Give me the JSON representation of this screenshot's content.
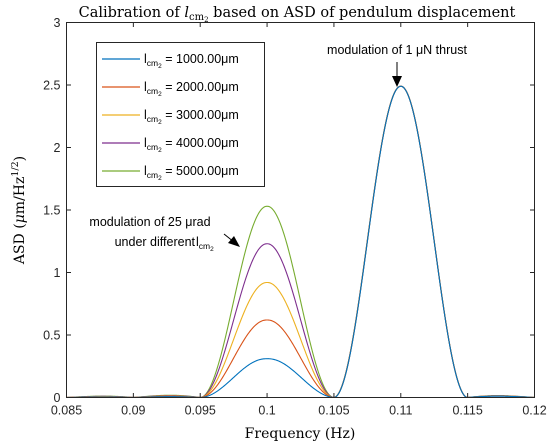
{
  "chart_data": {
    "type": "line",
    "title": {
      "prefix": "Calibration of ",
      "sym": "l",
      "sub": "cm",
      "subsub": "2",
      "suffix": " based on ASD of pendulum displacement"
    },
    "xlabel": "Frequency (Hz)",
    "ylabel": {
      "prefix": "ASD (",
      "mu": "μ",
      "mid": "m/Hz",
      "sup": "1/2",
      "suffix": ")"
    },
    "xlim": [
      0.085,
      0.12
    ],
    "ylim": [
      0,
      3
    ],
    "x_ticks": [
      0.085,
      0.09,
      0.095,
      0.1,
      0.105,
      0.11,
      0.115,
      0.12
    ],
    "x_tick_labels": [
      "0.085",
      "0.09",
      "0.095",
      "0.1",
      "0.105",
      "0.11",
      "0.115",
      "0.12"
    ],
    "y_ticks": [
      0,
      0.5,
      1,
      1.5,
      2,
      2.5,
      3
    ],
    "y_tick_labels": [
      "0",
      "0.5",
      "1",
      "1.5",
      "2",
      "2.5",
      "3"
    ],
    "grid": false,
    "legend_position": "top-left",
    "series": [
      {
        "name": {
          "sym": "l",
          "sub": "cm",
          "subsub": "2",
          "value": " = 1000.00μm"
        },
        "color": "#0072BD",
        "peak1": 0.31
      },
      {
        "name": {
          "sym": "l",
          "sub": "cm",
          "subsub": "2",
          "value": " = 2000.00μm"
        },
        "color": "#D95319",
        "peak1": 0.62
      },
      {
        "name": {
          "sym": "l",
          "sub": "cm",
          "subsub": "2",
          "value": " = 3000.00μm"
        },
        "color": "#EDB120",
        "peak1": 0.92
      },
      {
        "name": {
          "sym": "l",
          "sub": "cm",
          "subsub": "2",
          "value": " = 4000.00μm"
        },
        "color": "#7E2F8E",
        "peak1": 1.23
      },
      {
        "name": {
          "sym": "l",
          "sub": "cm",
          "subsub": "2",
          "value": " = 5000.00μm"
        },
        "color": "#77AC30",
        "peak1": 1.53
      }
    ],
    "peak1_center": 0.1,
    "peak2_center": 0.11,
    "peak2_value": 2.49,
    "annotations": [
      {
        "text": "modulation of 1 μN thrust",
        "target": [
          0.11,
          2.49
        ]
      },
      {
        "lines": [
          "modulation of 25 μrad",
          "under different "
        ],
        "sym": "l",
        "sub": "cm",
        "subsub": "2",
        "target": [
          0.0995,
          1.22
        ]
      }
    ]
  }
}
